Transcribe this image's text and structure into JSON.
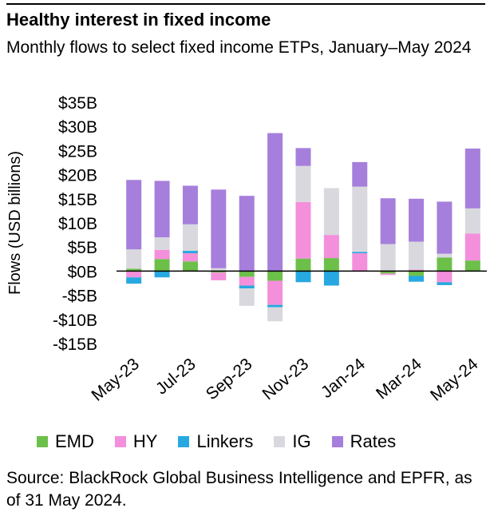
{
  "title": "Healthy interest in fixed income",
  "subtitle": "Monthly flows to select fixed income ETPs, January–May 2024",
  "source": "Source: BlackRock Global Business Intelligence and EPFR, as of 31 May 2024.",
  "colors": {
    "EMD": "#6cc04a",
    "HY": "#f48fdb",
    "Linkers": "#28a8e0",
    "IG": "#d9d8de",
    "Rates": "#a67fdc"
  },
  "chart_data": {
    "type": "bar",
    "stacked": true,
    "ylabel": "Flows (USD billions)",
    "ylim": [
      -15,
      35
    ],
    "y_ticks": [
      35,
      30,
      25,
      20,
      15,
      10,
      5,
      0,
      -5,
      -10,
      -15
    ],
    "y_tick_labels": [
      "$35B",
      "$30B",
      "$25B",
      "$20B",
      "$15B",
      "$10B",
      "$5B",
      "$0B",
      "-$5B",
      "-$10B",
      "-$15B"
    ],
    "categories": [
      "May-23",
      "Jun-23",
      "Jul-23",
      "Aug-23",
      "Sep-23",
      "Oct-23",
      "Nov-23",
      "Dec-23",
      "Jan-24",
      "Feb-24",
      "Mar-24",
      "Apr-24",
      "May-24"
    ],
    "x_tick_labels": [
      "May-23",
      "Jul-23",
      "Sep-23",
      "Nov-23",
      "Jan-24",
      "Mar-24",
      "May-24"
    ],
    "x_tick_indices": [
      0,
      2,
      4,
      6,
      8,
      10,
      12
    ],
    "legend_position": "bottom",
    "grid": false,
    "series": [
      {
        "name": "EMD",
        "values": [
          0.5,
          2.5,
          2.0,
          -0.3,
          -1.2,
          -2.0,
          2.6,
          2.7,
          0.0,
          -0.5,
          -1.0,
          2.8,
          2.2
        ]
      },
      {
        "name": "HY",
        "values": [
          -1.3,
          1.9,
          1.7,
          -1.6,
          -1.8,
          -5.0,
          11.7,
          4.8,
          3.7,
          -0.3,
          0.3,
          -2.3,
          5.6
        ]
      },
      {
        "name": "Linkers",
        "values": [
          -1.3,
          -1.3,
          0.5,
          0.0,
          -0.6,
          -0.5,
          -2.3,
          -3.0,
          0.3,
          0.0,
          -1.2,
          -0.6,
          0.0
        ]
      },
      {
        "name": "IG",
        "values": [
          4.0,
          2.6,
          5.5,
          0.6,
          -3.6,
          -2.9,
          7.5,
          9.7,
          13.5,
          5.6,
          5.8,
          0.8,
          5.2
        ]
      },
      {
        "name": "Rates",
        "values": [
          14.4,
          11.7,
          8.0,
          16.3,
          15.6,
          28.6,
          3.7,
          0.0,
          5.1,
          9.5,
          8.9,
          10.8,
          12.4
        ]
      }
    ]
  },
  "legend": [
    "EMD",
    "HY",
    "Linkers",
    "IG",
    "Rates"
  ]
}
